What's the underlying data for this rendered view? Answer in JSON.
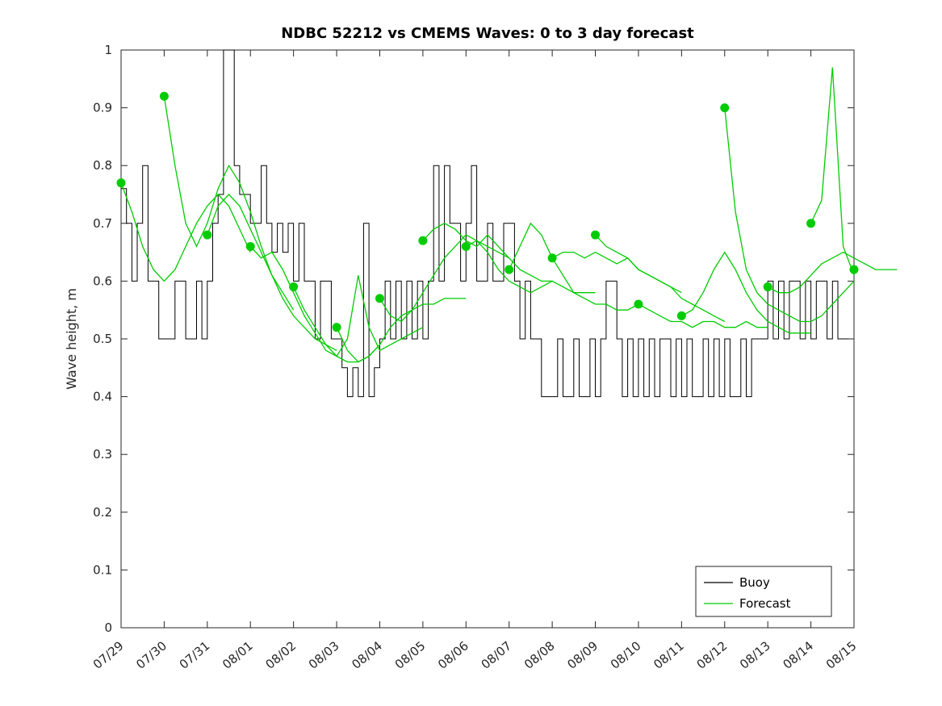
{
  "chart_data": {
    "type": "line",
    "title": "NDBC 52212 vs CMEMS Waves: 0 to 3 day forecast",
    "xlabel": "",
    "ylabel": "Wave height, m",
    "ylim": [
      0,
      1
    ],
    "yticks": [
      0,
      0.1,
      0.2,
      0.3,
      0.4,
      0.5,
      0.6,
      0.7,
      0.8,
      0.9,
      1
    ],
    "ytick_labels": [
      "0",
      "0.1",
      "0.2",
      "0.3",
      "0.4",
      "0.5",
      "0.6",
      "0.7",
      "0.8",
      "0.9",
      "1"
    ],
    "x_tick_labels": [
      "07/29",
      "07/30",
      "07/31",
      "08/01",
      "08/02",
      "08/03",
      "08/04",
      "08/05",
      "08/06",
      "08/07",
      "08/08",
      "08/09",
      "08/10",
      "08/11",
      "08/12",
      "08/13",
      "08/14",
      "08/15"
    ],
    "x_days": 17,
    "grid": false,
    "legend_position": "bottom-right",
    "axis_color": "#262626",
    "buoy": {
      "label": "Buoy",
      "color": "#000000",
      "x_step_days": 0.125,
      "values": [
        0.76,
        0.7,
        0.6,
        0.7,
        0.8,
        0.6,
        0.6,
        0.5,
        0.5,
        0.5,
        0.6,
        0.6,
        0.5,
        0.5,
        0.6,
        0.5,
        0.6,
        0.7,
        0.75,
        1.0,
        1.0,
        0.8,
        0.75,
        0.75,
        0.7,
        0.7,
        0.8,
        0.7,
        0.65,
        0.7,
        0.65,
        0.7,
        0.6,
        0.7,
        0.6,
        0.6,
        0.5,
        0.6,
        0.6,
        0.5,
        0.5,
        0.45,
        0.4,
        0.45,
        0.4,
        0.7,
        0.4,
        0.45,
        0.5,
        0.6,
        0.5,
        0.6,
        0.5,
        0.6,
        0.5,
        0.6,
        0.5,
        0.6,
        0.8,
        0.6,
        0.8,
        0.7,
        0.7,
        0.6,
        0.7,
        0.8,
        0.6,
        0.6,
        0.7,
        0.6,
        0.6,
        0.7,
        0.7,
        0.6,
        0.5,
        0.6,
        0.5,
        0.5,
        0.4,
        0.4,
        0.4,
        0.5,
        0.4,
        0.4,
        0.5,
        0.4,
        0.4,
        0.5,
        0.4,
        0.5,
        0.6,
        0.6,
        0.5,
        0.4,
        0.5,
        0.4,
        0.5,
        0.4,
        0.5,
        0.4,
        0.5,
        0.5,
        0.4,
        0.5,
        0.4,
        0.5,
        0.4,
        0.4,
        0.5,
        0.4,
        0.5,
        0.4,
        0.5,
        0.4,
        0.4,
        0.5,
        0.4,
        0.5,
        0.5,
        0.5,
        0.6,
        0.5,
        0.6,
        0.5,
        0.6,
        0.6,
        0.5,
        0.6,
        0.5,
        0.6,
        0.6,
        0.5,
        0.6,
        0.5,
        0.5,
        0.5
      ]
    },
    "forecast": {
      "label": "Forecast",
      "color": "#00cc00",
      "point_interval_days": 0.25,
      "runs": [
        {
          "start_day": 0,
          "values": [
            0.77,
            0.72,
            0.66,
            0.62,
            0.6,
            0.62,
            0.66,
            0.7,
            0.73,
            0.75,
            0.73,
            0.69,
            0.65
          ]
        },
        {
          "start_day": 1,
          "values": [
            0.92,
            0.8,
            0.7,
            0.66,
            0.7,
            0.76,
            0.8,
            0.77,
            0.72,
            0.66,
            0.61,
            0.58,
            0.55
          ]
        },
        {
          "start_day": 2,
          "values": [
            0.68,
            0.73,
            0.75,
            0.73,
            0.69,
            0.65,
            0.61,
            0.57,
            0.54,
            0.52,
            0.5,
            0.49,
            0.48
          ]
        },
        {
          "start_day": 3,
          "values": [
            0.66,
            0.64,
            0.65,
            0.62,
            0.58,
            0.54,
            0.51,
            0.48,
            0.47,
            0.46,
            0.46,
            0.47,
            0.49
          ]
        },
        {
          "start_day": 4,
          "values": [
            0.59,
            0.55,
            0.52,
            0.49,
            0.47,
            0.5,
            0.61,
            0.52,
            0.48,
            0.49,
            0.5,
            0.51,
            0.52
          ]
        },
        {
          "start_day": 5,
          "values": [
            0.52,
            0.48,
            0.46,
            0.47,
            0.49,
            0.52,
            0.54,
            0.55,
            0.56,
            0.56,
            0.57,
            0.57,
            0.57
          ]
        },
        {
          "start_day": 6,
          "values": [
            0.57,
            0.54,
            0.53,
            0.55,
            0.58,
            0.61,
            0.64,
            0.66,
            0.68,
            0.67,
            0.66,
            0.65,
            0.64
          ]
        },
        {
          "start_day": 7,
          "values": [
            0.67,
            0.69,
            0.7,
            0.69,
            0.67,
            0.66,
            0.68,
            0.66,
            0.64,
            0.62,
            0.61,
            0.6,
            0.6
          ]
        },
        {
          "start_day": 8,
          "values": [
            0.66,
            0.67,
            0.65,
            0.62,
            0.6,
            0.59,
            0.58,
            0.59,
            0.6,
            0.59,
            0.58,
            0.58,
            0.58
          ]
        },
        {
          "start_day": 9,
          "values": [
            0.62,
            0.66,
            0.7,
            0.68,
            0.64,
            0.61,
            0.58,
            0.57,
            0.56,
            0.56,
            0.55,
            0.55,
            0.56
          ]
        },
        {
          "start_day": 10,
          "values": [
            0.64,
            0.65,
            0.65,
            0.64,
            0.65,
            0.64,
            0.63,
            0.64,
            0.62,
            0.61,
            0.6,
            0.59,
            0.58
          ]
        },
        {
          "start_day": 11,
          "values": [
            0.68,
            0.66,
            0.65,
            0.64,
            0.62,
            0.61,
            0.6,
            0.59,
            0.57,
            0.56,
            0.55,
            0.54,
            0.53
          ]
        },
        {
          "start_day": 12,
          "values": [
            0.56,
            0.55,
            0.54,
            0.53,
            0.53,
            0.52,
            0.53,
            0.53,
            0.52,
            0.52,
            0.53,
            0.52,
            0.52
          ]
        },
        {
          "start_day": 13,
          "values": [
            0.54,
            0.55,
            0.58,
            0.62,
            0.65,
            0.62,
            0.58,
            0.55,
            0.53,
            0.52,
            0.51,
            0.51,
            0.51
          ]
        },
        {
          "start_day": 14,
          "values": [
            0.9,
            0.72,
            0.62,
            0.58,
            0.56,
            0.55,
            0.54,
            0.53,
            0.53,
            0.54,
            0.56,
            0.58,
            0.6
          ]
        },
        {
          "start_day": 15,
          "values": [
            0.59,
            0.58,
            0.58,
            0.59,
            0.61,
            0.63,
            0.64,
            0.65,
            0.64,
            0.63,
            0.62,
            0.62,
            0.62
          ]
        },
        {
          "start_day": 16,
          "values": [
            0.7,
            0.74,
            0.97,
            0.66,
            0.61
          ]
        },
        {
          "start_day": 17,
          "values": [
            0.62
          ]
        }
      ]
    },
    "legend": {
      "entries": [
        "Buoy",
        "Forecast"
      ]
    }
  }
}
